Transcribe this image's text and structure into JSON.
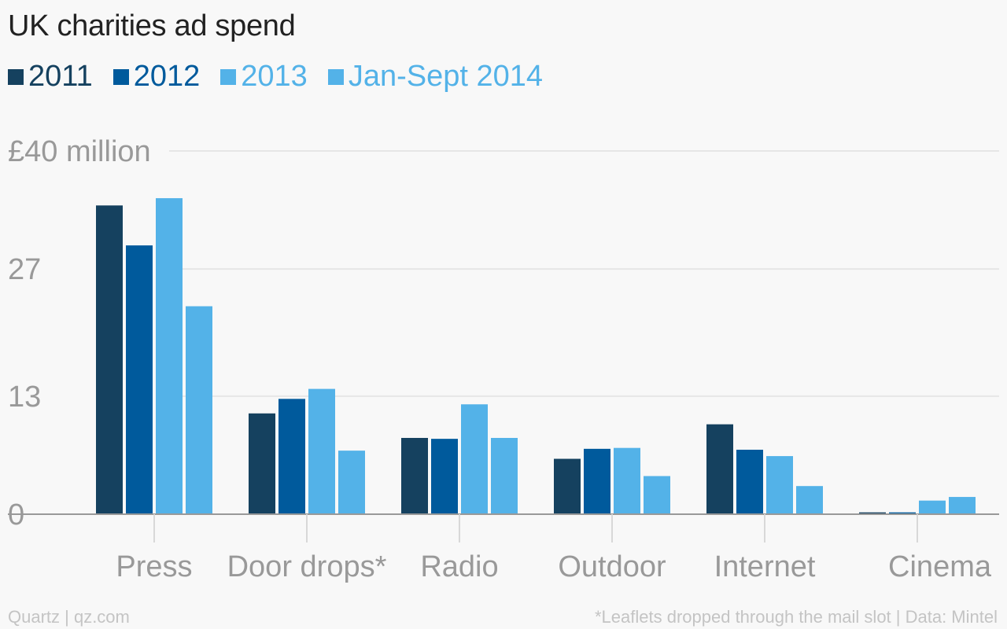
{
  "title": "UK charities ad spend",
  "legend": [
    {
      "label": "2011",
      "color": "#15415f"
    },
    {
      "label": "2012",
      "color": "#005a9c"
    },
    {
      "label": "2013",
      "color": "#53b2e8"
    },
    {
      "label": "Jan-Sept 2014",
      "color": "#53b2e8"
    }
  ],
  "footer": {
    "source_left": "Quartz | qz.com",
    "source_right": "*Leaflets dropped through the mail slot | Data: Mintel"
  },
  "chart_data": {
    "type": "bar",
    "title": "UK charities ad spend",
    "categories": [
      "Press",
      "Door drops*",
      "Radio",
      "Outdoor",
      "Internet",
      "Cinema"
    ],
    "series": [
      {
        "name": "2011",
        "values": [
          34.0,
          11.1,
          8.4,
          6.1,
          9.9,
          0.2
        ]
      },
      {
        "name": "2012",
        "values": [
          29.6,
          12.7,
          8.3,
          7.2,
          7.1,
          0.2
        ]
      },
      {
        "name": "2013",
        "values": [
          34.8,
          13.8,
          12.1,
          7.3,
          6.4,
          1.5
        ]
      },
      {
        "name": "Jan-Sept 2014",
        "values": [
          22.9,
          7.0,
          8.4,
          4.2,
          3.1,
          1.9
        ]
      }
    ],
    "y_ticks": [
      {
        "value": 0,
        "label": "0"
      },
      {
        "value": 13,
        "label": "13"
      },
      {
        "value": 27,
        "label": "27"
      },
      {
        "value": 40,
        "label": "£40 million"
      }
    ],
    "ylim": [
      0,
      40
    ],
    "grid": true,
    "legend_position": "top-left"
  }
}
